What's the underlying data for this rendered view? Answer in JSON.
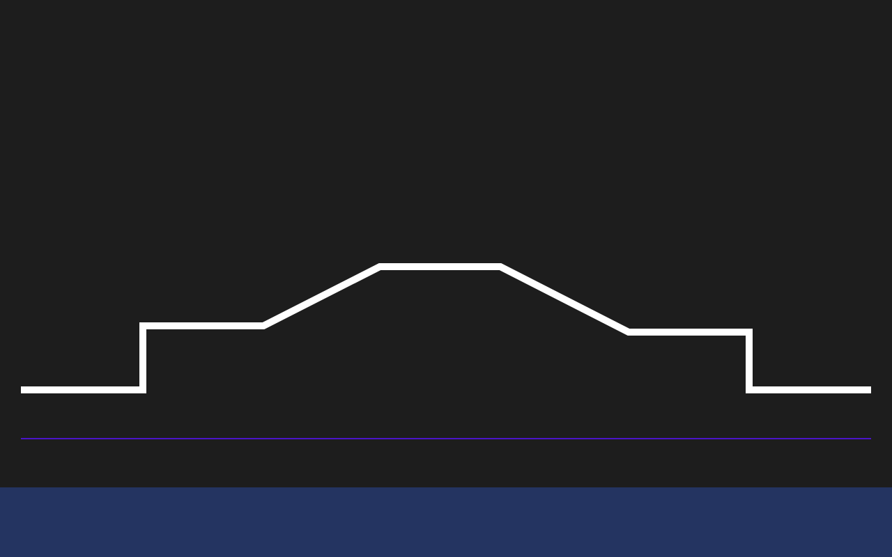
{
  "colors": {
    "background": "#1d1d1d",
    "terrain_line": "#ffffff",
    "baseline": "#4a14c8",
    "bottom_panel": "#243461"
  },
  "scene": {
    "elements": [
      "terrain-line",
      "baseline-line"
    ],
    "bottom_panel_text": ""
  }
}
